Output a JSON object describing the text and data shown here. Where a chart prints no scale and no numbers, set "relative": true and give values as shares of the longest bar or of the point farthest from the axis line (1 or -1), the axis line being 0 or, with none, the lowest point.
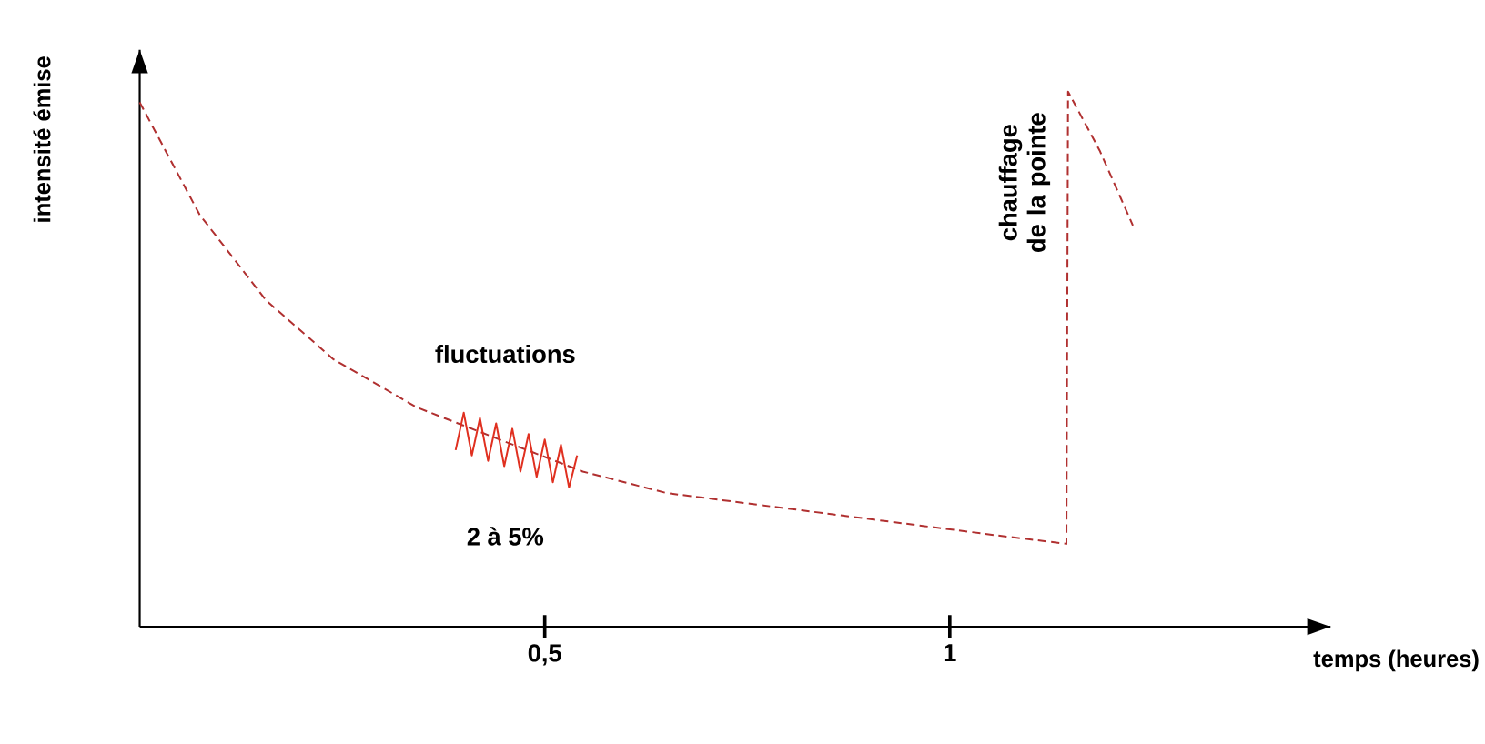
{
  "chart_data": {
    "type": "line",
    "relative": true,
    "xlabel": "temps (heures)",
    "ylabel": "intensité émise",
    "xlim": [
      0,
      1.47
    ],
    "xticks": [
      {
        "value": 0.5,
        "label": "0,5"
      },
      {
        "value": 1,
        "label": "1"
      }
    ],
    "marker": "none",
    "grid": false,
    "series": [
      {
        "color": "#b03030",
        "line_style": "dashed",
        "x": [
          0,
          0.074,
          0.156,
          0.239,
          0.342,
          0.444,
          0.547,
          0.65,
          0.753,
          0.856,
          0.959,
          1.062,
          1.144,
          1.146,
          1.185,
          1.226
        ],
        "values": [
          0.98,
          0.77,
          0.61,
          0.5,
          0.41,
          0.35,
          0.29,
          0.25,
          0.23,
          0.21,
          0.19,
          0.17,
          0.155,
          1.0,
          0.89,
          0.75
        ]
      },
      {
        "color": "#e03020",
        "line_style": "solid",
        "x": [
          0.39,
          0.4,
          0.41,
          0.42,
          0.43,
          0.44,
          0.45,
          0.46,
          0.47,
          0.48,
          0.49,
          0.5,
          0.51,
          0.52,
          0.53,
          0.54
        ],
        "values": [
          0.33,
          0.4,
          0.32,
          0.39,
          0.31,
          0.38,
          0.3,
          0.37,
          0.29,
          0.36,
          0.28,
          0.35,
          0.27,
          0.34,
          0.26,
          0.32
        ]
      }
    ],
    "annotations": [
      "fluctuations",
      "2 à 5%",
      "chauffage de la pointe"
    ]
  }
}
